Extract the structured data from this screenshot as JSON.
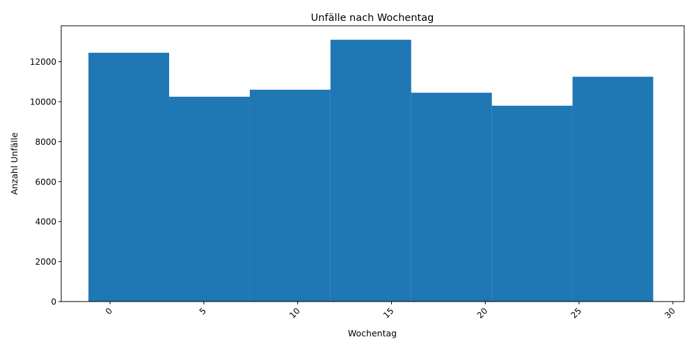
{
  "chart_data": {
    "type": "bar",
    "title": "Unfälle nach Wochentag",
    "xlabel": "Wochentag",
    "ylabel": "Anzahl Unfälle",
    "xlim": [
      -2.6,
      30.6
    ],
    "ylim": [
      0,
      13800
    ],
    "bin_width": 4.3,
    "x": [
      1.0,
      5.3,
      9.6,
      13.9,
      18.2,
      22.5,
      26.8
    ],
    "values": [
      12450,
      10250,
      10600,
      13100,
      10450,
      9800,
      11250
    ],
    "x_ticks": [
      0,
      5,
      10,
      15,
      20,
      25,
      30
    ],
    "x_tick_labels": [
      "0",
      "5",
      "10",
      "15",
      "20",
      "25",
      "30"
    ],
    "x_tick_rotation_deg": 45,
    "y_ticks": [
      0,
      2000,
      4000,
      6000,
      8000,
      10000,
      12000
    ],
    "y_tick_labels": [
      "0",
      "2000",
      "4000",
      "6000",
      "8000",
      "10000",
      "12000"
    ],
    "grid": false,
    "bar_color": "#1f77b4"
  }
}
